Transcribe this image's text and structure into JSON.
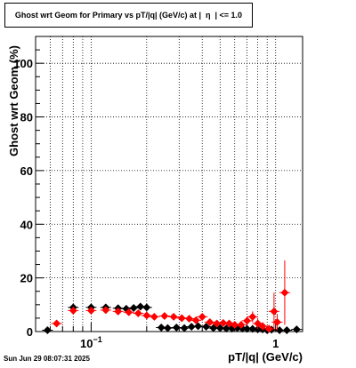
{
  "title": "Ghost wrt Geom for Primary vs pT/|q| (GeV/c) at |  η  | <= 1.0",
  "timestamp": "Sun Jun 29 08:07:31 2025",
  "chart_data": {
    "type": "scatter",
    "title": "Ghost wrt Geom for Primary vs pT/|q| (GeV/c) at |  η  | <= 1.0",
    "xlabel": "pT/|q| (GeV/c)",
    "ylabel": "Ghost wrt Geom (%)",
    "xscale": "log",
    "xlim": [
      0.05,
      1.4
    ],
    "ylim": [
      0,
      110
    ],
    "grid": true,
    "x_tick_labels": [
      {
        "value": 0.1,
        "base": "10",
        "exp": "−1"
      },
      {
        "value": 1,
        "base": "1",
        "exp": ""
      }
    ],
    "y_ticks": [
      0,
      20,
      40,
      60,
      80,
      100
    ],
    "series": [
      {
        "color": "#000000",
        "marker": "diamond",
        "points": [
          {
            "x": 0.058,
            "y": 0.5,
            "err": 0
          },
          {
            "x": 0.08,
            "y": 9,
            "err": 0.8
          },
          {
            "x": 0.1,
            "y": 9,
            "err": 0.8
          },
          {
            "x": 0.12,
            "y": 9,
            "err": 0.8
          },
          {
            "x": 0.14,
            "y": 8.7,
            "err": 0.8
          },
          {
            "x": 0.155,
            "y": 8.5,
            "err": 0.8
          },
          {
            "x": 0.17,
            "y": 8.8,
            "err": 0.8
          },
          {
            "x": 0.185,
            "y": 9.3,
            "err": 0.8
          },
          {
            "x": 0.2,
            "y": 9,
            "err": 0.8
          },
          {
            "x": 0.24,
            "y": 1.5,
            "err": 0.5
          },
          {
            "x": 0.26,
            "y": 1.3,
            "err": 0.5
          },
          {
            "x": 0.29,
            "y": 1.5,
            "err": 0.5
          },
          {
            "x": 0.32,
            "y": 1.3,
            "err": 0.5
          },
          {
            "x": 0.35,
            "y": 1.8,
            "err": 0.5
          },
          {
            "x": 0.38,
            "y": 2,
            "err": 0.5
          },
          {
            "x": 0.42,
            "y": 1.8,
            "err": 0.5
          },
          {
            "x": 0.46,
            "y": 1.3,
            "err": 0.5
          },
          {
            "x": 0.5,
            "y": 1.3,
            "err": 0.5
          },
          {
            "x": 0.54,
            "y": 1.1,
            "err": 0.5
          },
          {
            "x": 0.58,
            "y": 1.1,
            "err": 0.5
          },
          {
            "x": 0.62,
            "y": 1.3,
            "err": 0.5
          },
          {
            "x": 0.66,
            "y": 1.1,
            "err": 0.5
          },
          {
            "x": 0.7,
            "y": 1,
            "err": 0.5
          },
          {
            "x": 0.75,
            "y": 1,
            "err": 0.5
          },
          {
            "x": 0.8,
            "y": 0.8,
            "err": 0.5
          },
          {
            "x": 0.85,
            "y": 0.8,
            "err": 0.5
          },
          {
            "x": 0.9,
            "y": 0.5,
            "err": 0.5
          },
          {
            "x": 0.95,
            "y": 0.7,
            "err": 0.5
          },
          {
            "x": 1.05,
            "y": 0.5,
            "err": 0.5
          },
          {
            "x": 1.15,
            "y": 0.5,
            "err": 0.5
          },
          {
            "x": 1.3,
            "y": 0.8,
            "err": 0.5
          }
        ]
      },
      {
        "color": "#ff0000",
        "marker": "diamond",
        "points": [
          {
            "x": 0.065,
            "y": 3,
            "err": 0.5
          },
          {
            "x": 0.08,
            "y": 7.8,
            "err": 0.8
          },
          {
            "x": 0.1,
            "y": 7.8,
            "err": 0.8
          },
          {
            "x": 0.12,
            "y": 8,
            "err": 0.8
          },
          {
            "x": 0.14,
            "y": 7.5,
            "err": 0.8
          },
          {
            "x": 0.16,
            "y": 7.2,
            "err": 0.8
          },
          {
            "x": 0.18,
            "y": 6.8,
            "err": 0.8
          },
          {
            "x": 0.2,
            "y": 6,
            "err": 0.8
          },
          {
            "x": 0.22,
            "y": 5.5,
            "err": 0.8
          },
          {
            "x": 0.25,
            "y": 5.8,
            "err": 0.8
          },
          {
            "x": 0.28,
            "y": 5.5,
            "err": 0.8
          },
          {
            "x": 0.31,
            "y": 5,
            "err": 0.8
          },
          {
            "x": 0.34,
            "y": 4.8,
            "err": 0.8
          },
          {
            "x": 0.37,
            "y": 4.2,
            "err": 0.8
          },
          {
            "x": 0.4,
            "y": 5.5,
            "err": 1
          },
          {
            "x": 0.44,
            "y": 3.5,
            "err": 1
          },
          {
            "x": 0.48,
            "y": 3,
            "err": 1
          },
          {
            "x": 0.52,
            "y": 3.2,
            "err": 1
          },
          {
            "x": 0.56,
            "y": 3,
            "err": 1
          },
          {
            "x": 0.6,
            "y": 2.5,
            "err": 1
          },
          {
            "x": 0.65,
            "y": 2.5,
            "err": 1
          },
          {
            "x": 0.7,
            "y": 4,
            "err": 1.5
          },
          {
            "x": 0.75,
            "y": 5.5,
            "err": 2
          },
          {
            "x": 0.8,
            "y": 3,
            "err": 2
          },
          {
            "x": 0.85,
            "y": 2,
            "err": 1.5
          },
          {
            "x": 0.92,
            "y": 1,
            "err": 1.5
          },
          {
            "x": 0.98,
            "y": 7.5,
            "err": 7
          },
          {
            "x": 1.02,
            "y": 3.5,
            "err": 3
          },
          {
            "x": 1.12,
            "y": 14.5,
            "err": 12
          }
        ]
      }
    ]
  }
}
